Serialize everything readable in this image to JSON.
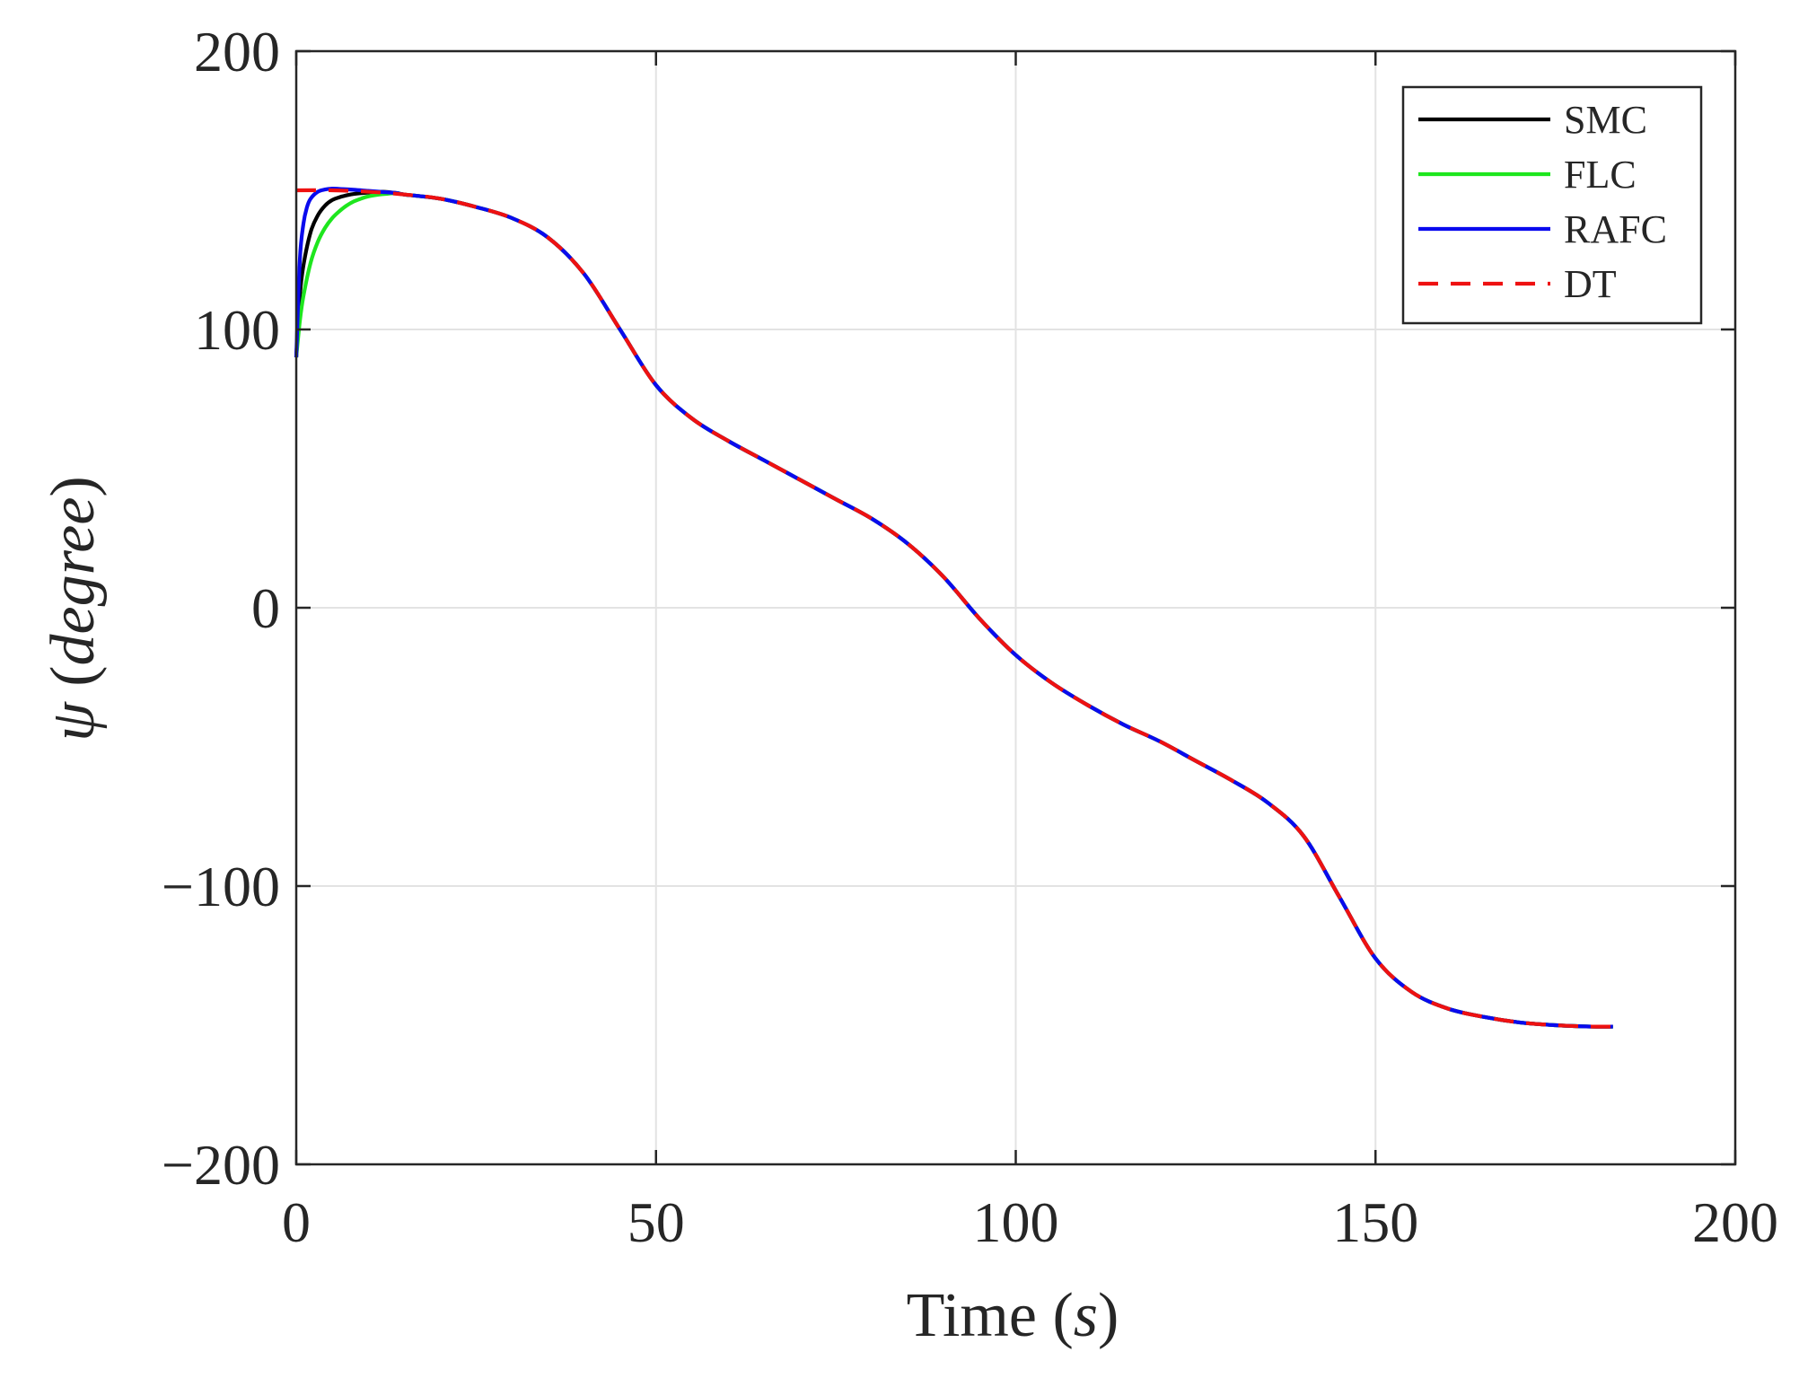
{
  "chart_data": {
    "type": "line",
    "title": "",
    "xlabel": "Time (s)",
    "xlabel_main": "Time",
    "xlabel_unit": "s",
    "ylabel_symbol": "ψ",
    "ylabel_unit": "degree",
    "xlim": [
      0,
      200
    ],
    "ylim": [
      -200,
      200
    ],
    "xticks": [
      0,
      50,
      100,
      150,
      200
    ],
    "xtick_labels": [
      "0",
      "50",
      "100",
      "150",
      "200"
    ],
    "yticks": [
      200,
      100,
      0,
      -100,
      -200
    ],
    "ytick_labels": [
      "200",
      "100",
      "0",
      "−100",
      "−200"
    ],
    "grid": true,
    "legend_position": "top-right",
    "dt_x": [
      0,
      5,
      10,
      15,
      20,
      25,
      30,
      35,
      40,
      45,
      50,
      55,
      60,
      65,
      70,
      75,
      80,
      85,
      90,
      95,
      100,
      105,
      110,
      115,
      120,
      125,
      130,
      135,
      140,
      145,
      150,
      155,
      160,
      165,
      170,
      175,
      180,
      183
    ],
    "dt_y": [
      150,
      150,
      149.5,
      148.5,
      147,
      144,
      140,
      133,
      120,
      100,
      80,
      68,
      60,
      53,
      46,
      39,
      32,
      23,
      11,
      -4,
      -17,
      -27,
      -35,
      -42,
      -48,
      -55,
      -62,
      -70,
      -82,
      -104,
      -126,
      -138,
      -144,
      -147,
      -149,
      -150,
      -150.5,
      -150.5
    ],
    "series": [
      {
        "name": "SMC",
        "color": "#000000",
        "dash": "solid",
        "x": [
          0,
          0.5,
          1,
          2,
          3,
          4,
          5,
          6,
          7,
          8,
          10,
          12,
          14
        ],
        "y": [
          90,
          112,
          123,
          135,
          141,
          144.5,
          146.5,
          147.5,
          148.2,
          148.7,
          149.2,
          149.5,
          149
        ]
      },
      {
        "name": "FLC",
        "color": "#1ee61e",
        "dash": "solid",
        "x": [
          0,
          0.5,
          1,
          2,
          3,
          4,
          5,
          6,
          7,
          8,
          9,
          10,
          12,
          14
        ],
        "y": [
          90,
          103,
          112,
          124,
          131.5,
          136.5,
          140,
          142.5,
          144.5,
          146,
          147,
          147.8,
          148.6,
          149
        ]
      },
      {
        "name": "RAFC",
        "color": "#0a0aee",
        "dash": "solid",
        "x": [
          0,
          0.5,
          1,
          1.5,
          2,
          3,
          4,
          5,
          6,
          8,
          10,
          12,
          14
        ],
        "y": [
          90,
          125,
          138,
          144,
          147,
          149.5,
          150.3,
          150.6,
          150.5,
          150.2,
          149.8,
          149.4,
          149
        ]
      },
      {
        "name": "DT",
        "color": "#ee1111",
        "dash": "dashed",
        "x": [
          0,
          5,
          10,
          14
        ],
        "y": [
          150,
          150,
          149.5,
          149
        ]
      }
    ]
  }
}
